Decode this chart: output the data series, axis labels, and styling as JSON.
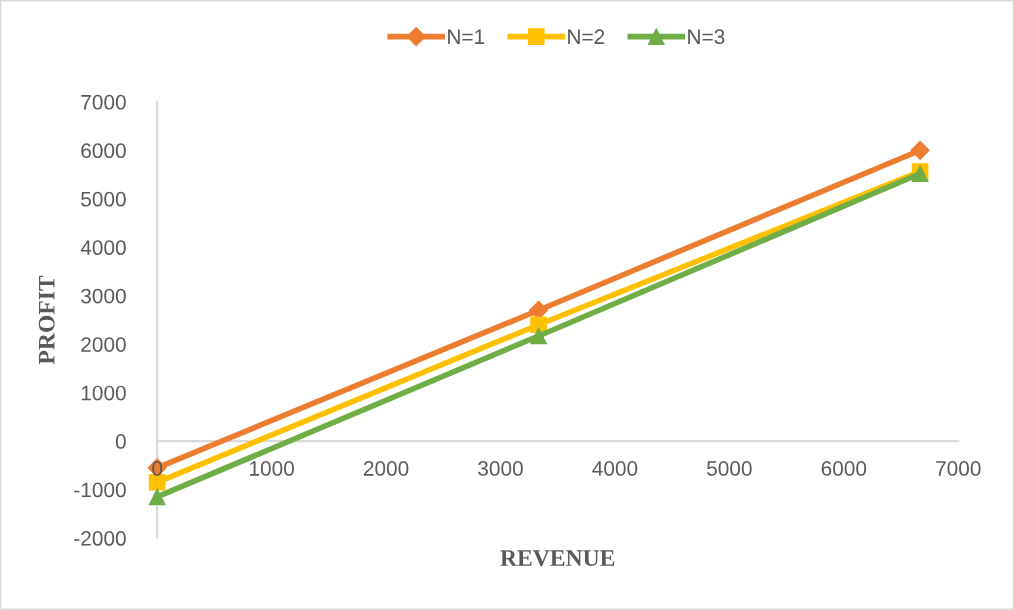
{
  "chart_data": {
    "type": "line",
    "xlabel": "REVENUE",
    "ylabel": "PROFIT",
    "x": [
      0,
      3333,
      6667
    ],
    "xlim": [
      0,
      7000
    ],
    "xticks": [
      0,
      1000,
      2000,
      3000,
      4000,
      5000,
      6000,
      7000
    ],
    "ylim": [
      -2000,
      7000
    ],
    "yticks": [
      -2000,
      -1000,
      0,
      1000,
      2000,
      3000,
      4000,
      5000,
      6000,
      7000
    ],
    "grid": false,
    "legend": "top",
    "line_style": "solid",
    "series": [
      {
        "name": "N=1",
        "color": "#ed7d31",
        "marker": "diamond",
        "values": [
          -550,
          2700,
          6000
        ]
      },
      {
        "name": "N=2",
        "color": "#ffc000",
        "marker": "square",
        "values": [
          -850,
          2400,
          5560
        ]
      },
      {
        "name": "N=3",
        "color": "#70ad47",
        "marker": "triangle",
        "values": [
          -1150,
          2170,
          5520
        ]
      }
    ]
  }
}
